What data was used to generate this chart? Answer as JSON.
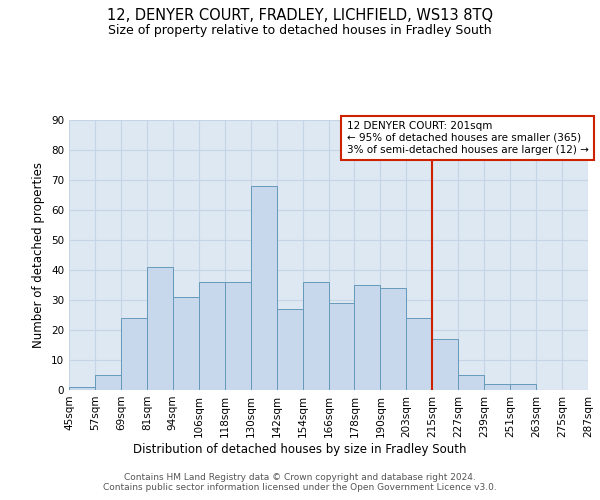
{
  "title1": "12, DENYER COURT, FRADLEY, LICHFIELD, WS13 8TQ",
  "title2": "Size of property relative to detached houses in Fradley South",
  "xlabel": "Distribution of detached houses by size in Fradley South",
  "ylabel": "Number of detached properties",
  "bin_labels": [
    "45sqm",
    "57sqm",
    "69sqm",
    "81sqm",
    "94sqm",
    "106sqm",
    "118sqm",
    "130sqm",
    "142sqm",
    "154sqm",
    "166sqm",
    "178sqm",
    "190sqm",
    "203sqm",
    "215sqm",
    "227sqm",
    "239sqm",
    "251sqm",
    "263sqm",
    "275sqm",
    "287sqm"
  ],
  "bar_heights": [
    1,
    5,
    24,
    41,
    31,
    36,
    36,
    68,
    27,
    36,
    29,
    35,
    34,
    24,
    17,
    5,
    2,
    2,
    0,
    0
  ],
  "bar_color": "#c8d8ec",
  "bar_edge_color": "#6699bb",
  "vline_color": "#cc2200",
  "annotation_text": "12 DENYER COURT: 201sqm\n← 95% of detached houses are smaller (365)\n3% of semi-detached houses are larger (12) →",
  "annotation_box_color": "#cc2200",
  "ylim": [
    0,
    90
  ],
  "yticks": [
    0,
    10,
    20,
    30,
    40,
    50,
    60,
    70,
    80,
    90
  ],
  "grid_color": "#c5d5e5",
  "background_color": "#dde8f2",
  "footer_text": "Contains HM Land Registry data © Crown copyright and database right 2024.\nContains public sector information licensed under the Open Government Licence v3.0.",
  "title1_fontsize": 10.5,
  "title2_fontsize": 9,
  "xlabel_fontsize": 8.5,
  "ylabel_fontsize": 8.5,
  "tick_fontsize": 7.5,
  "footer_fontsize": 6.5
}
